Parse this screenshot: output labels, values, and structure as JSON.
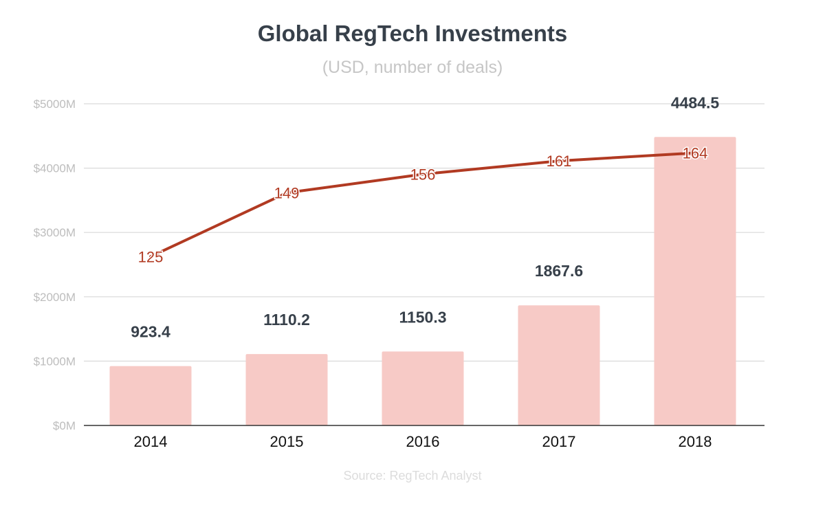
{
  "title": "Global RegTech Investments",
  "subtitle": "(USD, number of deals)",
  "source": "Source: RegTech Analyst",
  "colors": {
    "bar": "#f7cac6",
    "line": "#b13a22",
    "grid": "#d9d9d9",
    "axis": "#333333",
    "tick": "#bdbdbd",
    "bar_label": "#37404a",
    "category_label": "#111111"
  },
  "chart_data": {
    "type": "bar+line",
    "categories": [
      "2014",
      "2015",
      "2016",
      "2017",
      "2018"
    ],
    "series": [
      {
        "type": "bar",
        "values": [
          923.4,
          1110.2,
          1150.3,
          1867.6,
          4484.5
        ],
        "labels": [
          "923.4",
          "1110.2",
          "1150.3",
          "1867.6",
          "4484.5"
        ]
      },
      {
        "type": "line",
        "values": [
          125,
          149,
          156,
          161,
          164
        ],
        "labels": [
          "125",
          "149",
          "156",
          "161",
          "164"
        ]
      }
    ],
    "ylim": [
      0,
      5000
    ],
    "yticks": [
      0,
      1000,
      2000,
      3000,
      4000,
      5000
    ],
    "ytick_labels": [
      "$0M",
      "$1000M",
      "$2000M",
      "$3000M",
      "$4000M",
      "$5000M"
    ],
    "grid": true,
    "legend": "none"
  }
}
